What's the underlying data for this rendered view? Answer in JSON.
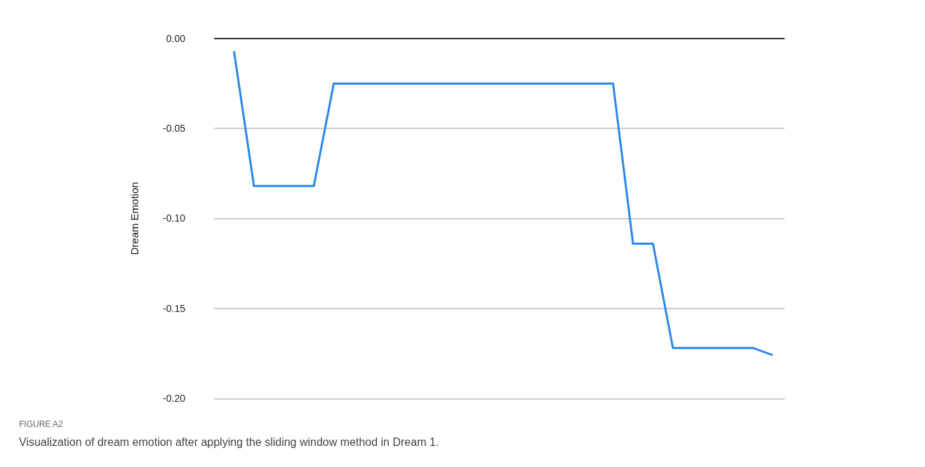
{
  "chart_data": {
    "type": "line",
    "ylabel": "Dream Emotion",
    "annotations": [
      "FIGURE A2",
      "Visualization of dream emotion after applying the sliding window method in Dream 1."
    ],
    "categories": [
      null,
      null,
      null,
      null,
      null,
      null,
      null,
      null,
      null,
      null,
      null,
      null,
      null,
      null,
      null,
      null,
      null,
      null,
      null,
      null,
      null,
      null,
      null,
      null,
      null,
      null,
      null,
      null
    ],
    "series": [
      {
        "color": "#2b87e8",
        "values": [
          -0.007,
          -0.082,
          -0.082,
          -0.082,
          -0.082,
          -0.025,
          -0.025,
          -0.025,
          -0.025,
          -0.025,
          -0.025,
          -0.025,
          -0.025,
          -0.025,
          -0.025,
          -0.025,
          -0.025,
          -0.025,
          -0.025,
          -0.025,
          -0.114,
          -0.114,
          -0.172,
          -0.172,
          -0.172,
          -0.172,
          -0.172,
          -0.176
        ]
      }
    ],
    "ylim": [
      -0.2,
      0
    ],
    "yticks": [
      {
        "value": 0,
        "label": "0.00"
      },
      {
        "value": -0.05,
        "label": "-0.05"
      },
      {
        "value": -0.1,
        "label": "-0.10"
      },
      {
        "value": -0.15,
        "label": "-0.15"
      },
      {
        "value": -0.2,
        "label": "-0.20"
      }
    ],
    "grid": "y",
    "tick_labels": "y",
    "marker": "none",
    "line_style": "solid"
  }
}
